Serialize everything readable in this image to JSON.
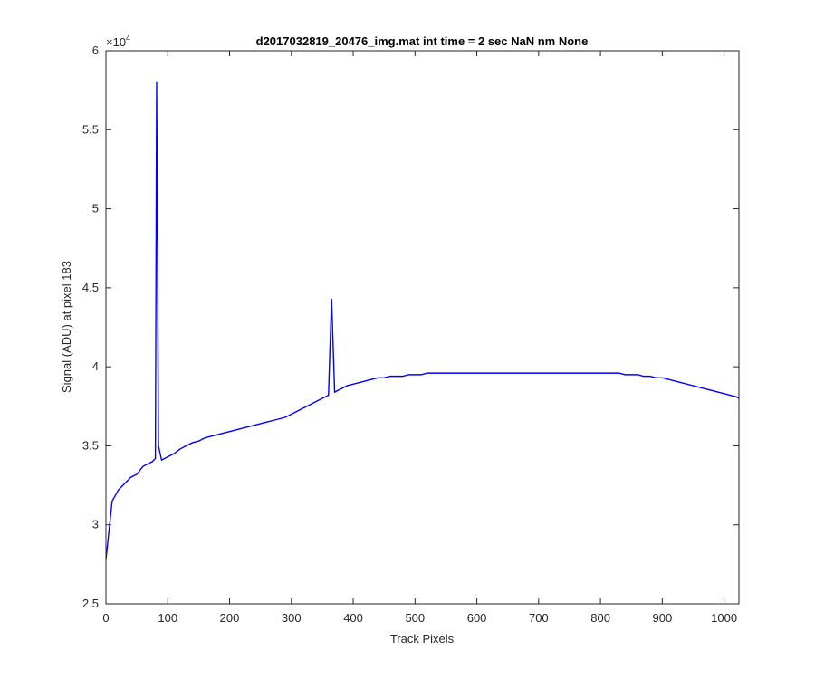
{
  "chart_data": {
    "type": "line",
    "title": "d2017032819_20476_img.mat int time = 2 sec  NaN nm None",
    "xlabel": "Track Pixels",
    "ylabel": "Signal (ADU) at pixel 183",
    "xlim": [
      0,
      1024
    ],
    "ylim": [
      25000,
      60000
    ],
    "x_ticks": [
      0,
      100,
      200,
      300,
      400,
      500,
      600,
      700,
      800,
      900,
      1000
    ],
    "x_tick_labels": [
      "0",
      "100",
      "200",
      "300",
      "400",
      "500",
      "600",
      "700",
      "800",
      "900",
      "1000"
    ],
    "y_ticks": [
      25000,
      30000,
      35000,
      40000,
      45000,
      50000,
      55000,
      60000
    ],
    "y_tick_labels": [
      "2.5",
      "3",
      "3.5",
      "4",
      "4.5",
      "5",
      "5.5",
      "6"
    ],
    "y_exponent_label": "×10",
    "y_exponent_power": "4",
    "grid": false,
    "box": true,
    "series": [
      {
        "color": "#0000ff",
        "x": [
          0,
          10,
          20,
          30,
          40,
          50,
          60,
          70,
          75,
          80,
          82,
          85,
          90,
          100,
          110,
          120,
          130,
          140,
          150,
          160,
          170,
          180,
          190,
          200,
          210,
          220,
          230,
          240,
          250,
          260,
          270,
          280,
          290,
          300,
          310,
          320,
          330,
          340,
          350,
          360,
          365,
          370,
          380,
          390,
          400,
          410,
          420,
          430,
          440,
          450,
          460,
          470,
          480,
          490,
          500,
          510,
          520,
          530,
          540,
          550,
          560,
          570,
          580,
          590,
          600,
          610,
          620,
          630,
          640,
          650,
          660,
          670,
          680,
          690,
          700,
          710,
          720,
          730,
          740,
          750,
          760,
          770,
          780,
          790,
          800,
          810,
          815,
          820,
          830,
          840,
          850,
          860,
          870,
          880,
          890,
          900,
          910,
          920,
          930,
          940,
          950,
          960,
          970,
          980,
          990,
          1000,
          1010,
          1020,
          1024
        ],
        "y": [
          27800,
          31500,
          32200,
          32600,
          33000,
          33200,
          33700,
          33900,
          34000,
          34200,
          58000,
          35000,
          34100,
          34300,
          34500,
          34800,
          35000,
          35200,
          35300,
          35500,
          35600,
          35700,
          35800,
          35900,
          36000,
          36100,
          36200,
          36300,
          36400,
          36500,
          36600,
          36700,
          36800,
          37000,
          37200,
          37400,
          37600,
          37800,
          38000,
          38200,
          44300,
          38400,
          38600,
          38800,
          38900,
          39000,
          39100,
          39200,
          39300,
          39300,
          39400,
          39400,
          39400,
          39500,
          39500,
          39500,
          39600,
          39600,
          39600,
          39600,
          39600,
          39600,
          39600,
          39600,
          39600,
          39600,
          39600,
          39600,
          39600,
          39600,
          39600,
          39600,
          39600,
          39600,
          39600,
          39600,
          39600,
          39600,
          39600,
          39600,
          39600,
          39600,
          39600,
          39600,
          39600,
          39600,
          39600,
          39600,
          39600,
          39500,
          39500,
          39500,
          39400,
          39400,
          39300,
          39300,
          39200,
          39100,
          39000,
          38900,
          38800,
          38700,
          38600,
          38500,
          38400,
          38300,
          38200,
          38100,
          38000
        ]
      }
    ]
  }
}
